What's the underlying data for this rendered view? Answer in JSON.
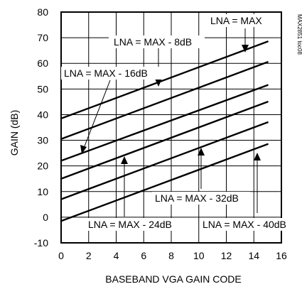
{
  "chart_data": {
    "type": "line",
    "xlabel": "BASEBAND VGA GAIN CODE",
    "ylabel": "GAIN (dB)",
    "xlim": [
      0,
      16
    ],
    "ylim": [
      -10,
      80
    ],
    "xticks": [
      "0",
      "2",
      "4",
      "6",
      "8",
      "10",
      "12",
      "14",
      "16"
    ],
    "yticks": [
      "-10",
      "0",
      "10",
      "20",
      "30",
      "40",
      "50",
      "60",
      "70",
      "80"
    ],
    "grid": true,
    "series": [
      {
        "name": "LNA = MAX",
        "x": [
          0,
          15
        ],
        "y": [
          38.5,
          68.5
        ]
      },
      {
        "name": "LNA = MAX - 8dB",
        "x": [
          0,
          15
        ],
        "y": [
          30.5,
          60.5
        ]
      },
      {
        "name": "LNA = MAX - 16dB",
        "x": [
          0,
          15
        ],
        "y": [
          22,
          51.5
        ]
      },
      {
        "name": "LNA = MAX - 24dB",
        "x": [
          0,
          15
        ],
        "y": [
          15,
          45
        ]
      },
      {
        "name": "LNA = MAX - 32dB",
        "x": [
          0,
          15
        ],
        "y": [
          7,
          37
        ]
      },
      {
        "name": "LNA = MAX - 40dB",
        "x": [
          0,
          15
        ],
        "y": [
          -1.5,
          28.5
        ]
      }
    ],
    "annotations": [
      {
        "text": "LNA = MAX",
        "series": 0
      },
      {
        "text": "LNA = MAX - 8dB",
        "series": 1
      },
      {
        "text": "LNA = MAX - 16dB",
        "series": 2
      },
      {
        "text": "LNA = MAX - 24dB",
        "series": 3
      },
      {
        "text": "LNA = MAX - 32dB",
        "series": 4
      },
      {
        "text": "LNA = MAX - 40dB",
        "series": 5
      }
    ],
    "watermark": "MAX2851 toc08"
  }
}
